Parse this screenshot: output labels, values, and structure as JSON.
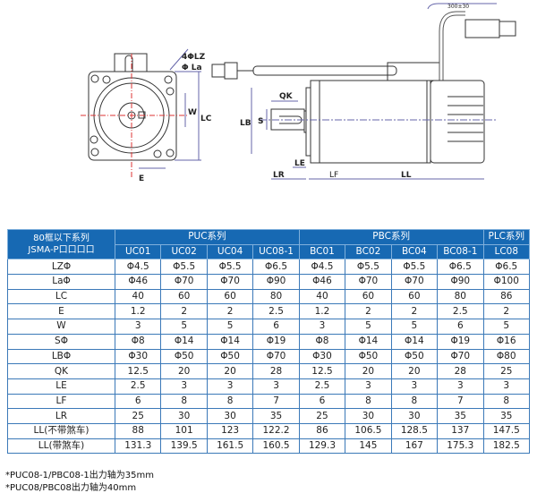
{
  "drawing": {
    "labels": {
      "lz": "4ΦLZ",
      "la": "Φ La",
      "w": "W",
      "lc": "LC",
      "e": "E",
      "qk": "QK",
      "lb": "LB",
      "s": "S",
      "le": "LE",
      "lr": "LR",
      "lf": "LF",
      "ll": "LL",
      "cable": "300±30"
    }
  },
  "table": {
    "corner_line1": "80框以下系列",
    "corner_line2": "JSMA-P口口口口",
    "groups": [
      "PUC系列",
      "PBC系列",
      "PLC系列"
    ],
    "models": [
      "UC01",
      "UC02",
      "UC04",
      "UC08-1",
      "BC01",
      "BC02",
      "BC04",
      "BC08-1",
      "LC08"
    ],
    "rows": [
      {
        "label": "LZΦ",
        "values": [
          "Φ4.5",
          "Φ5.5",
          "Φ5.5",
          "Φ6.5",
          "Φ4.5",
          "Φ5.5",
          "Φ5.5",
          "Φ6.5",
          "Φ6.5"
        ]
      },
      {
        "label": "LaΦ",
        "values": [
          "Φ46",
          "Φ70",
          "Φ70",
          "Φ90",
          "Φ46",
          "Φ70",
          "Φ70",
          "Φ90",
          "Φ100"
        ]
      },
      {
        "label": "LC",
        "values": [
          "40",
          "60",
          "60",
          "80",
          "40",
          "60",
          "60",
          "80",
          "86"
        ]
      },
      {
        "label": "E",
        "values": [
          "1.2",
          "2",
          "2",
          "2.5",
          "1.2",
          "2",
          "2",
          "2.5",
          "2"
        ]
      },
      {
        "label": "W",
        "values": [
          "3",
          "5",
          "5",
          "6",
          "3",
          "5",
          "5",
          "6",
          "5"
        ]
      },
      {
        "label": "SΦ",
        "values": [
          "Φ8",
          "Φ14",
          "Φ14",
          "Φ19",
          "Φ8",
          "Φ14",
          "Φ14",
          "Φ19",
          "Φ16"
        ]
      },
      {
        "label": "LBΦ",
        "values": [
          "Φ30",
          "Φ50",
          "Φ50",
          "Φ70",
          "Φ30",
          "Φ50",
          "Φ50",
          "Φ70",
          "Φ80"
        ]
      },
      {
        "label": "QK",
        "values": [
          "12.5",
          "20",
          "20",
          "28",
          "12.5",
          "20",
          "20",
          "28",
          "25"
        ]
      },
      {
        "label": "LE",
        "values": [
          "2.5",
          "3",
          "3",
          "3",
          "2.5",
          "3",
          "3",
          "3",
          "3"
        ]
      },
      {
        "label": "LF",
        "values": [
          "6",
          "8",
          "8",
          "7",
          "6",
          "8",
          "8",
          "7",
          "8"
        ]
      },
      {
        "label": "LR",
        "values": [
          "25",
          "30",
          "30",
          "35",
          "25",
          "30",
          "30",
          "35",
          "35"
        ]
      },
      {
        "label": "LL(不带煞车)",
        "values": [
          "88",
          "101",
          "123",
          "122.2",
          "86",
          "106.5",
          "128.5",
          "137",
          "147.5"
        ]
      },
      {
        "label": "LL(带煞车)",
        "values": [
          "131.3",
          "139.5",
          "161.5",
          "160.5",
          "129.3",
          "145",
          "167",
          "175.3",
          "182.5"
        ]
      }
    ],
    "colors": {
      "header": "#1769b3",
      "grid": "#3b79b8"
    }
  },
  "footnotes": [
    "*PUC08-1/PBC08-1出力轴为35mm",
    "*PUC08/PBC08出力轴为40mm"
  ]
}
